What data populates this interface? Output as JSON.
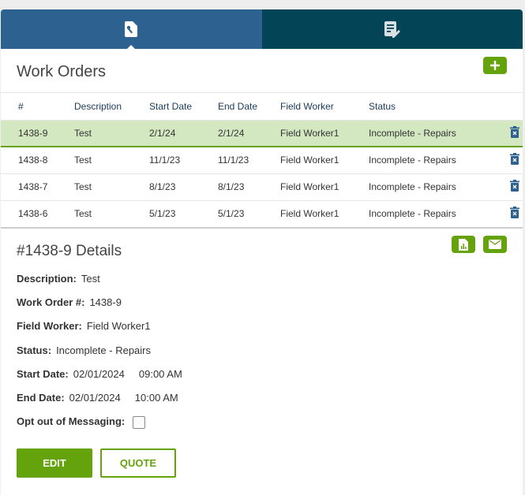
{
  "tabs": [
    {
      "icon": "work-order-wrench-icon"
    },
    {
      "icon": "document-edit-icon"
    }
  ],
  "header": {
    "title": "Work Orders",
    "add_icon": "plus-icon"
  },
  "table": {
    "columns": [
      "#",
      "Description",
      "Start Date",
      "End Date",
      "Field Worker",
      "Status"
    ],
    "rows": [
      [
        "1438-9",
        "Test",
        "2/1/24",
        "2/1/24",
        "Field Worker1",
        "Incomplete - Repairs"
      ],
      [
        "1438-8",
        "Test",
        "11/1/23",
        "11/1/23",
        "Field Worker1",
        "Incomplete - Repairs"
      ],
      [
        "1438-7",
        "Test",
        "8/1/23",
        "8/1/23",
        "Field Worker1",
        "Incomplete - Repairs"
      ],
      [
        "1438-6",
        "Test",
        "5/1/23",
        "5/1/23",
        "Field Worker1",
        "Incomplete - Repairs"
      ]
    ]
  },
  "details": {
    "title": "#1438-9 Details",
    "fields": [
      {
        "label": "Description:",
        "value": "Test"
      },
      {
        "label": "Work Order #:",
        "value": "1438-9"
      },
      {
        "label": "Field Worker:",
        "value": "Field Worker1"
      },
      {
        "label": "Status:",
        "value": "Incomplete - Repairs"
      },
      {
        "label": "Start Date:",
        "value": "02/01/2024     09:00 AM"
      },
      {
        "label": "End Date:",
        "value": "02/01/2024     10:00 AM"
      }
    ],
    "opt_out_label": "Opt out of Messaging:",
    "edit_label": "EDIT",
    "quote_label": "QUOTE"
  },
  "colors": {
    "accent": "#65a30d",
    "tab_active": "#2c6190",
    "tab_inactive": "#034457",
    "selected_row": "#d3e8c1"
  }
}
